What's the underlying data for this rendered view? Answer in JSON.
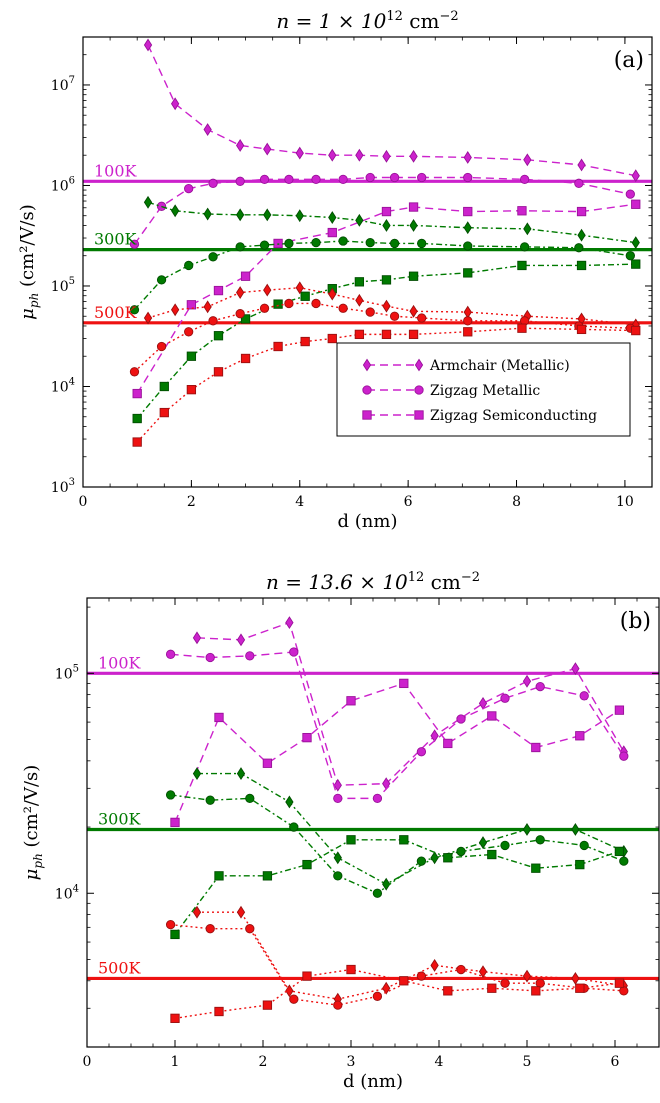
{
  "colors": {
    "100K": "#cc22cc",
    "300K": "#007a00",
    "500K": "#ee1111"
  },
  "legend": [
    {
      "name": "Armchair (Metallic)",
      "marker": "diamond",
      "dash": "8,5"
    },
    {
      "name": "Zigzag Metallic",
      "marker": "circle",
      "dash": "8,5"
    },
    {
      "name": "Zigzag Semiconducting",
      "marker": "square",
      "dash": "8,5"
    }
  ],
  "chart_data": [
    {
      "type": "scatter",
      "panel_label": "(a)",
      "title_prefix": "n = 1 × 10",
      "title_exp": "12",
      "title_unit": "cm",
      "title_unit_exp": "−2",
      "xlabel": "d (nm)",
      "ylabel_main": "μ",
      "ylabel_sub": "ph",
      "ylabel_unit": "(cm²/V/s)",
      "xlim": [
        0,
        10.5
      ],
      "ylim": [
        1000,
        30000000
      ],
      "yscale": "log",
      "xticks": [
        0,
        2,
        4,
        6,
        8,
        10
      ],
      "xtick_labels": [
        "0",
        "2",
        "4",
        "6",
        "8",
        "10"
      ],
      "yticks": [
        1000,
        10000,
        100000,
        1000000,
        10000000
      ],
      "ytick_base": "10",
      "ytick_exps": [
        "3",
        "4",
        "5",
        "6",
        "7"
      ],
      "has_legend": true,
      "hlines": [
        {
          "label": "100K",
          "temp": "100K",
          "y": 1100000
        },
        {
          "label": "300K",
          "temp": "300K",
          "y": 230000
        },
        {
          "label": "500K",
          "temp": "500K",
          "y": 43000
        }
      ],
      "series": [
        {
          "family": "Armchair (Metallic)",
          "temp": "100K",
          "marker": "diamond",
          "x": [
            1.2,
            1.7,
            2.3,
            2.9,
            3.4,
            4.0,
            4.6,
            5.1,
            5.6,
            6.1,
            7.1,
            8.2,
            9.2,
            10.2
          ],
          "y": [
            25000000,
            6500000,
            3600000,
            2500000,
            2300000,
            2100000,
            2000000,
            2000000,
            1950000,
            1950000,
            1900000,
            1800000,
            1600000,
            1250000
          ]
        },
        {
          "family": "Zigzag Metallic",
          "temp": "100K",
          "marker": "circle",
          "x": [
            0.95,
            1.45,
            1.95,
            2.4,
            2.9,
            3.35,
            3.8,
            4.3,
            4.8,
            5.3,
            5.75,
            6.25,
            7.1,
            8.15,
            9.15,
            10.1
          ],
          "y": [
            260000,
            620000,
            930000,
            1050000,
            1100000,
            1150000,
            1150000,
            1150000,
            1150000,
            1200000,
            1200000,
            1200000,
            1200000,
            1150000,
            1050000,
            820000
          ]
        },
        {
          "family": "Zigzag Semiconducting",
          "temp": "100K",
          "marker": "square",
          "x": [
            1.0,
            2.0,
            2.5,
            3.0,
            3.6,
            4.6,
            5.6,
            6.1,
            7.1,
            8.1,
            9.2,
            10.2
          ],
          "y": [
            8500,
            65000,
            90000,
            125000,
            265000,
            340000,
            550000,
            610000,
            550000,
            560000,
            550000,
            650000
          ]
        },
        {
          "family": "Armchair (Metallic)",
          "temp": "300K",
          "marker": "diamond",
          "x": [
            1.2,
            1.7,
            2.3,
            2.9,
            3.4,
            4.0,
            4.6,
            5.1,
            5.6,
            6.1,
            7.1,
            8.2,
            9.2,
            10.2
          ],
          "y": [
            680000,
            560000,
            520000,
            510000,
            510000,
            500000,
            480000,
            450000,
            400000,
            400000,
            380000,
            370000,
            320000,
            270000
          ]
        },
        {
          "family": "Zigzag Metallic",
          "temp": "300K",
          "marker": "circle",
          "x": [
            0.95,
            1.45,
            1.95,
            2.4,
            2.9,
            3.35,
            3.8,
            4.3,
            4.8,
            5.3,
            5.75,
            6.25,
            7.1,
            8.15,
            9.15,
            10.1
          ],
          "y": [
            58000,
            115000,
            160000,
            195000,
            245000,
            255000,
            265000,
            270000,
            280000,
            270000,
            265000,
            265000,
            250000,
            245000,
            240000,
            200000
          ]
        },
        {
          "family": "Zigzag Semiconducting",
          "temp": "300K",
          "marker": "square",
          "x": [
            1.0,
            1.5,
            2.0,
            2.5,
            3.0,
            3.6,
            4.1,
            4.6,
            5.1,
            5.6,
            6.1,
            7.1,
            8.1,
            9.2,
            10.2
          ],
          "y": [
            4800,
            10000,
            20000,
            32000,
            47000,
            66000,
            79000,
            94000,
            110000,
            115000,
            125000,
            135000,
            160000,
            160000,
            165000
          ]
        },
        {
          "family": "Armchair (Metallic)",
          "temp": "500K",
          "marker": "diamond",
          "x": [
            1.2,
            1.7,
            2.3,
            2.9,
            3.4,
            4.0,
            4.6,
            5.1,
            5.6,
            6.1,
            7.1,
            8.2,
            9.2,
            10.2
          ],
          "y": [
            48000,
            58000,
            62000,
            86000,
            91000,
            96000,
            83000,
            72000,
            63000,
            56000,
            55000,
            50000,
            47000,
            41000
          ]
        },
        {
          "family": "Zigzag Metallic",
          "temp": "500K",
          "marker": "circle",
          "x": [
            0.95,
            1.45,
            1.95,
            2.4,
            2.9,
            3.35,
            3.8,
            4.3,
            4.8,
            5.3,
            5.75,
            6.25,
            7.1,
            8.15,
            9.15,
            10.1
          ],
          "y": [
            14000,
            25000,
            35000,
            45000,
            53000,
            60000,
            67000,
            67000,
            60000,
            55000,
            50000,
            48000,
            45000,
            45000,
            40000,
            38000
          ]
        },
        {
          "family": "Zigzag Semiconducting",
          "temp": "500K",
          "marker": "square",
          "x": [
            1.0,
            1.5,
            2.0,
            2.5,
            3.0,
            3.6,
            4.1,
            4.6,
            5.1,
            5.6,
            6.1,
            7.1,
            8.1,
            9.2,
            10.2
          ],
          "y": [
            2800,
            5500,
            9300,
            14000,
            19000,
            25000,
            28000,
            30000,
            33000,
            33000,
            33000,
            35000,
            38000,
            37000,
            36000
          ]
        }
      ]
    },
    {
      "type": "scatter",
      "panel_label": "(b)",
      "title_prefix": "n = 13.6 × 10",
      "title_exp": "12",
      "title_unit": "cm",
      "title_unit_exp": "−2",
      "xlabel": "d (nm)",
      "ylabel_main": "μ",
      "ylabel_sub": "ph",
      "ylabel_unit": "(cm²/V/s)",
      "xlim": [
        0,
        6.5
      ],
      "ylim": [
        2000,
        220000
      ],
      "yscale": "log",
      "xticks": [
        0,
        1,
        2,
        3,
        4,
        5,
        6
      ],
      "xtick_labels": [
        "0",
        "1",
        "2",
        "3",
        "4",
        "5",
        "6"
      ],
      "yticks": [
        10000,
        100000
      ],
      "ytick_base": "10",
      "ytick_exps": [
        "4",
        "5"
      ],
      "has_legend": false,
      "hlines": [
        {
          "label": "100K",
          "temp": "100K",
          "y": 100000
        },
        {
          "label": "300K",
          "temp": "300K",
          "y": 19500
        },
        {
          "label": "500K",
          "temp": "500K",
          "y": 4100
        }
      ],
      "series": [
        {
          "family": "Armchair (Metallic)",
          "temp": "100K",
          "marker": "diamond",
          "x": [
            1.25,
            1.75,
            2.3,
            2.85,
            3.4,
            3.95,
            4.5,
            5.0,
            5.55,
            6.1
          ],
          "y": [
            145000,
            142000,
            170000,
            31000,
            31500,
            52000,
            73000,
            92000,
            105000,
            44000
          ]
        },
        {
          "family": "Zigzag Metallic",
          "temp": "100K",
          "marker": "circle",
          "x": [
            0.95,
            1.4,
            1.85,
            2.35,
            2.85,
            3.3,
            3.8,
            4.25,
            4.75,
            5.15,
            5.65,
            6.1
          ],
          "y": [
            122000,
            118000,
            120000,
            125000,
            27000,
            27000,
            44000,
            62000,
            77000,
            87000,
            79000,
            42000
          ]
        },
        {
          "family": "Zigzag Semiconducting",
          "temp": "100K",
          "marker": "square",
          "x": [
            1.0,
            1.5,
            2.05,
            2.5,
            3.0,
            3.6,
            4.1,
            4.6,
            5.1,
            5.6,
            6.05
          ],
          "y": [
            21000,
            63000,
            39000,
            51000,
            75000,
            90000,
            48000,
            64000,
            46000,
            52000,
            68000
          ]
        },
        {
          "family": "Armchair (Metallic)",
          "temp": "300K",
          "marker": "diamond",
          "x": [
            1.25,
            1.75,
            2.3,
            2.85,
            3.4,
            3.95,
            4.5,
            5.0,
            5.55,
            6.1
          ],
          "y": [
            35000,
            35000,
            26000,
            14500,
            11000,
            14500,
            17000,
            19500,
            19500,
            15500
          ]
        },
        {
          "family": "Zigzag Metallic",
          "temp": "300K",
          "marker": "circle",
          "x": [
            0.95,
            1.4,
            1.85,
            2.35,
            2.85,
            3.3,
            3.8,
            4.25,
            4.75,
            5.15,
            5.65,
            6.1
          ],
          "y": [
            28000,
            26500,
            27000,
            20000,
            12000,
            10000,
            14000,
            15500,
            16500,
            17500,
            16500,
            14000
          ]
        },
        {
          "family": "Zigzag Semiconducting",
          "temp": "300K",
          "marker": "square",
          "x": [
            1.0,
            1.5,
            2.05,
            2.5,
            3.0,
            3.6,
            4.1,
            4.6,
            5.1,
            5.6,
            6.05
          ],
          "y": [
            6500,
            12000,
            12000,
            13500,
            17500,
            17500,
            14500,
            15000,
            13000,
            13500,
            15500
          ]
        },
        {
          "family": "Armchair (Metallic)",
          "temp": "500K",
          "marker": "diamond",
          "x": [
            1.25,
            1.75,
            2.3,
            2.85,
            3.4,
            3.95,
            4.5,
            5.0,
            5.55,
            6.1
          ],
          "y": [
            8200,
            8200,
            3600,
            3300,
            3700,
            4700,
            4400,
            4200,
            4100,
            3800
          ]
        },
        {
          "family": "Zigzag Metallic",
          "temp": "500K",
          "marker": "circle",
          "x": [
            0.95,
            1.4,
            1.85,
            2.35,
            2.85,
            3.3,
            3.8,
            4.25,
            4.75,
            5.15,
            5.65,
            6.1
          ],
          "y": [
            7200,
            6900,
            6900,
            3300,
            3100,
            3400,
            4200,
            4500,
            3900,
            3900,
            3700,
            3600
          ]
        },
        {
          "family": "Zigzag Semiconducting",
          "temp": "500K",
          "marker": "square",
          "x": [
            1.0,
            1.5,
            2.05,
            2.5,
            3.0,
            3.6,
            4.1,
            4.6,
            5.1,
            5.6,
            6.05
          ],
          "y": [
            2700,
            2900,
            3100,
            4200,
            4500,
            4000,
            3600,
            3700,
            3600,
            3700,
            3900
          ]
        }
      ]
    }
  ]
}
